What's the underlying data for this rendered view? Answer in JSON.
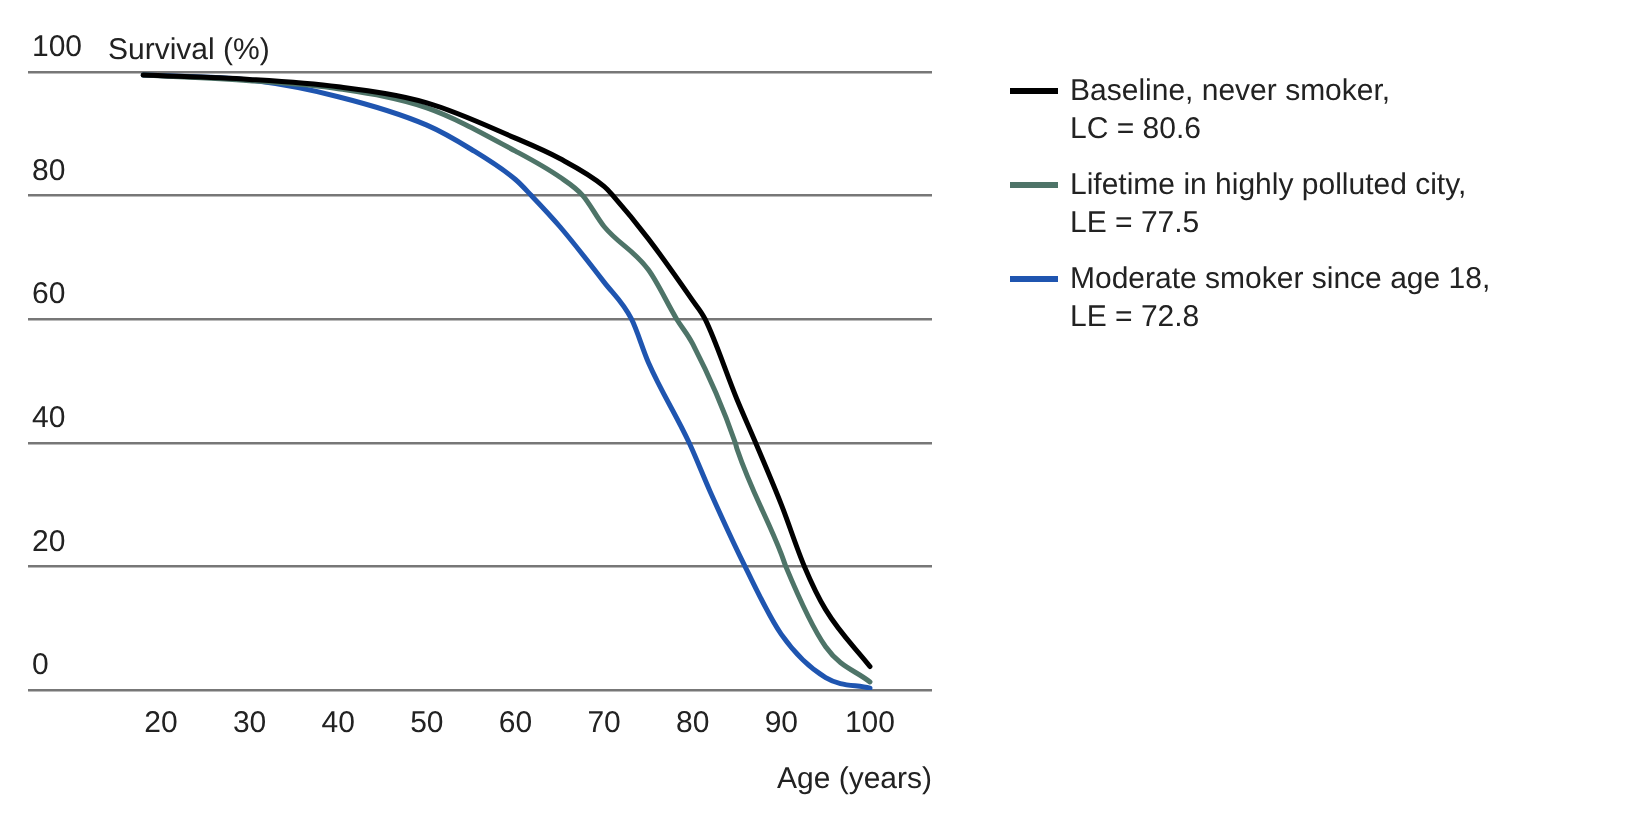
{
  "chart_data": {
    "type": "line",
    "xlabel": "Age (years)",
    "ylabel": "Survival (%)",
    "xlim": [
      5,
      107
    ],
    "xticks": [
      20,
      30,
      40,
      50,
      60,
      70,
      80,
      90,
      100
    ],
    "ylim": [
      0,
      100
    ],
    "yticks": [
      0,
      20,
      40,
      60,
      80,
      100
    ],
    "grid": "y",
    "legend": "right",
    "marker": "none",
    "line_style": "solid",
    "series": [
      {
        "name": "Baseline, never smoker, LC = 80.6",
        "color": "#000000",
        "x": [
          18,
          30,
          40,
          50,
          60,
          65,
          70,
          71,
          75,
          80,
          81.4,
          85,
          87.1,
          90,
          92.6,
          95,
          100
        ],
        "values": [
          99.5,
          98.8,
          97.6,
          95,
          89.3,
          86,
          81.5,
          80,
          73,
          63,
          60,
          47,
          40,
          30,
          20,
          13,
          3.8
        ]
      },
      {
        "name": "Lifetime in highly polluted city, LE = 77.5",
        "color": "#4e7468",
        "x": [
          18,
          30,
          40,
          50,
          60,
          65,
          67.6,
          70,
          75,
          78.2,
          80,
          84.8,
          85,
          90,
          90.5,
          95,
          100
        ],
        "values": [
          99.5,
          98.6,
          97.3,
          94.2,
          87.2,
          83,
          80,
          75,
          68,
          60,
          56,
          40,
          39,
          22,
          20,
          7,
          1.3
        ]
      },
      {
        "name": "Moderate smoker since age 18, LE = 72.8",
        "color": "#1f55b0",
        "x": [
          18,
          30,
          40,
          50,
          55,
          60,
          61.8,
          65,
          70,
          73.1,
          75,
          79.6,
          82,
          85.9,
          90,
          95,
          100
        ],
        "values": [
          99.5,
          98.7,
          96,
          91.4,
          87.5,
          82.6,
          80,
          75,
          66,
          60,
          53,
          40,
          32,
          20,
          9,
          2,
          0.3
        ]
      }
    ]
  }
}
